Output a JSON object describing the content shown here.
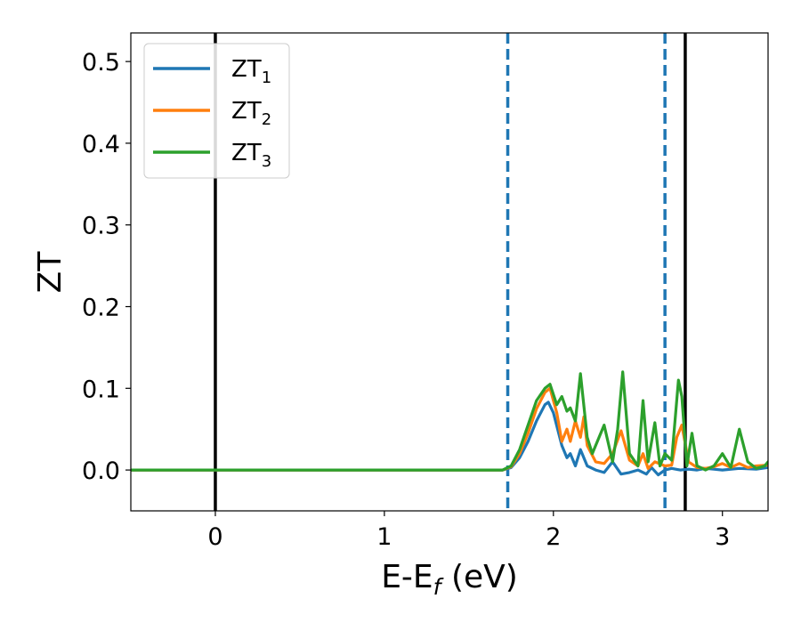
{
  "chart_data": {
    "type": "line",
    "title": "",
    "xlabel": "E-E",
    "xlabel_subscript": "f",
    "xlabel_unit": "(eV)",
    "ylabel": "ZT",
    "xlim": [
      -0.5,
      3.27
    ],
    "ylim": [
      -0.05,
      0.535
    ],
    "xticks": [
      0,
      1,
      2,
      3
    ],
    "yticks": [
      0.0,
      0.1,
      0.2,
      0.3,
      0.4,
      0.5
    ],
    "xtick_labels": [
      "0",
      "1",
      "2",
      "3"
    ],
    "ytick_labels": [
      "0.0",
      "0.1",
      "0.2",
      "0.3",
      "0.4",
      "0.5"
    ],
    "grid": false,
    "legend_position": "top-left",
    "vertical_lines": [
      {
        "x": 0.0,
        "style": "solid",
        "color": "#000000"
      },
      {
        "x": 2.78,
        "style": "solid",
        "color": "#000000"
      },
      {
        "x": 1.73,
        "style": "dashed",
        "color": "#1f77b4"
      },
      {
        "x": 2.66,
        "style": "dashed",
        "color": "#1f77b4"
      }
    ],
    "series": [
      {
        "name": "ZT",
        "subscript": "1",
        "color": "#1f77b4",
        "x": [
          -0.5,
          1.6,
          1.7,
          1.75,
          1.8,
          1.85,
          1.9,
          1.95,
          1.97,
          2.0,
          2.05,
          2.08,
          2.1,
          2.13,
          2.16,
          2.2,
          2.25,
          2.3,
          2.35,
          2.4,
          2.45,
          2.5,
          2.55,
          2.58,
          2.62,
          2.66,
          2.7,
          2.75,
          2.8,
          2.85,
          2.9,
          2.95,
          3.0,
          3.1,
          3.2,
          3.27
        ],
        "y": [
          0.0,
          0.0,
          0.0,
          0.003,
          0.015,
          0.035,
          0.06,
          0.08,
          0.083,
          0.07,
          0.03,
          0.015,
          0.02,
          0.005,
          0.025,
          0.005,
          0.0,
          -0.003,
          0.01,
          -0.005,
          -0.003,
          0.0,
          -0.005,
          0.003,
          -0.006,
          0.0,
          0.002,
          0.0,
          0.001,
          0.0,
          0.002,
          0.001,
          0.0,
          0.002,
          0.001,
          0.003
        ]
      },
      {
        "name": "ZT",
        "subscript": "2",
        "color": "#ff7f0e",
        "x": [
          -0.5,
          1.6,
          1.7,
          1.75,
          1.8,
          1.85,
          1.9,
          1.95,
          1.98,
          2.02,
          2.05,
          2.08,
          2.1,
          2.13,
          2.16,
          2.18,
          2.2,
          2.25,
          2.3,
          2.35,
          2.4,
          2.45,
          2.5,
          2.53,
          2.56,
          2.6,
          2.66,
          2.7,
          2.73,
          2.76,
          2.8,
          2.85,
          2.9,
          2.95,
          3.0,
          3.05,
          3.1,
          3.15,
          3.2,
          3.27
        ],
        "y": [
          0.0,
          0.0,
          0.0,
          0.004,
          0.02,
          0.045,
          0.075,
          0.095,
          0.1,
          0.07,
          0.035,
          0.05,
          0.035,
          0.06,
          0.04,
          0.065,
          0.03,
          0.01,
          0.008,
          0.02,
          0.048,
          0.012,
          0.005,
          0.02,
          0.002,
          0.01,
          0.005,
          0.006,
          0.04,
          0.055,
          0.01,
          0.003,
          0.002,
          0.004,
          0.008,
          0.003,
          0.008,
          0.003,
          0.005,
          0.006
        ]
      },
      {
        "name": "ZT",
        "subscript": "3",
        "color": "#2ca02c",
        "x": [
          -0.5,
          1.6,
          1.7,
          1.75,
          1.8,
          1.85,
          1.9,
          1.95,
          1.98,
          2.02,
          2.05,
          2.08,
          2.1,
          2.13,
          2.16,
          2.2,
          2.23,
          2.27,
          2.3,
          2.35,
          2.38,
          2.41,
          2.45,
          2.5,
          2.53,
          2.56,
          2.6,
          2.63,
          2.66,
          2.7,
          2.74,
          2.76,
          2.79,
          2.82,
          2.85,
          2.9,
          2.95,
          3.0,
          3.05,
          3.1,
          3.15,
          3.2,
          3.25,
          3.27
        ],
        "y": [
          0.0,
          0.0,
          0.0,
          0.005,
          0.025,
          0.055,
          0.085,
          0.1,
          0.105,
          0.08,
          0.09,
          0.072,
          0.076,
          0.06,
          0.118,
          0.04,
          0.02,
          0.04,
          0.055,
          0.01,
          0.05,
          0.12,
          0.02,
          0.005,
          0.085,
          0.01,
          0.058,
          0.005,
          0.02,
          0.012,
          0.11,
          0.09,
          0.005,
          0.045,
          0.005,
          0.0,
          0.005,
          0.02,
          0.003,
          0.05,
          0.01,
          0.002,
          0.005,
          0.01
        ]
      }
    ]
  }
}
